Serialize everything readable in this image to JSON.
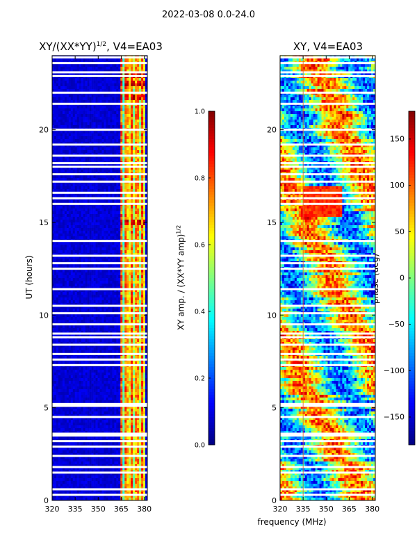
{
  "figure": {
    "suptitle": "2022-03-08 0.0-24.0",
    "xlabel": "frequency (MHz)",
    "ylabel": "UT (hours)"
  },
  "chart_data": [
    {
      "type": "heatmap",
      "title": "XY/(XX*YY)",
      "title_sup": "1/2",
      "title_suffix": ", V4=EA03",
      "xlabel": "frequency (MHz)",
      "ylabel": "UT (hours)",
      "xlim": [
        320,
        382
      ],
      "ylim": [
        0,
        24
      ],
      "xticks": [
        320,
        335,
        350,
        365,
        380
      ],
      "yticks": [
        0,
        5,
        10,
        15,
        20
      ],
      "colorbar": {
        "label": "XY amp. / (XX*YY amp)",
        "label_sup": "1/2",
        "range": [
          0.0,
          1.0
        ],
        "ticks": [
          "0.0",
          "0.2",
          "0.4",
          "0.6",
          "0.8",
          "1.0"
        ],
        "colormap": "jet"
      },
      "gap_rows_hours": [
        0.3,
        0.6,
        1.5,
        1.8,
        2.4,
        2.9,
        3.2,
        3.5,
        3.6,
        4.5,
        5.1,
        5.2,
        7.3,
        7.6,
        7.9,
        8.4,
        8.8,
        9.0,
        9.5,
        10.1,
        10.5,
        11.4,
        12.5,
        12.8,
        13.2,
        14.0,
        16.0,
        16.3,
        16.6,
        17.2,
        17.6,
        18.0,
        18.2,
        18.6,
        19.2,
        20.0,
        21.4,
        22.0,
        22.9,
        23.1,
        23.6,
        23.9
      ],
      "high_channel_band_mhz": [
        364,
        380
      ],
      "hot_rows_hours": [
        15.0,
        21.8,
        22.5,
        23.0
      ]
    },
    {
      "type": "heatmap",
      "title": "XY, V4=EA03",
      "xlabel": "frequency (MHz)",
      "ylabel": "",
      "xlim": [
        320,
        382
      ],
      "ylim": [
        0,
        24
      ],
      "xticks": [
        320,
        335,
        350,
        365,
        380
      ],
      "yticks": [
        0,
        5,
        10,
        15,
        20
      ],
      "colorbar": {
        "label": "phase (deg)",
        "range": [
          -180,
          180
        ],
        "ticks": [
          "−150",
          "−100",
          "−50",
          "0",
          "50",
          "100",
          "150"
        ],
        "colormap": "jet"
      },
      "gap_rows_hours": [
        0.3,
        0.6,
        1.5,
        1.8,
        2.4,
        2.9,
        3.2,
        3.5,
        3.6,
        4.5,
        5.1,
        5.2,
        7.3,
        7.6,
        7.9,
        8.4,
        8.8,
        9.0,
        9.5,
        10.1,
        10.5,
        11.4,
        12.5,
        12.8,
        13.2,
        14.0,
        16.0,
        16.3,
        16.6,
        17.2,
        17.6,
        18.0,
        18.2,
        18.6,
        19.2,
        20.0,
        21.4,
        22.0,
        22.9,
        23.1,
        23.6,
        23.9
      ],
      "vertical_line_mhz": 335
    }
  ]
}
